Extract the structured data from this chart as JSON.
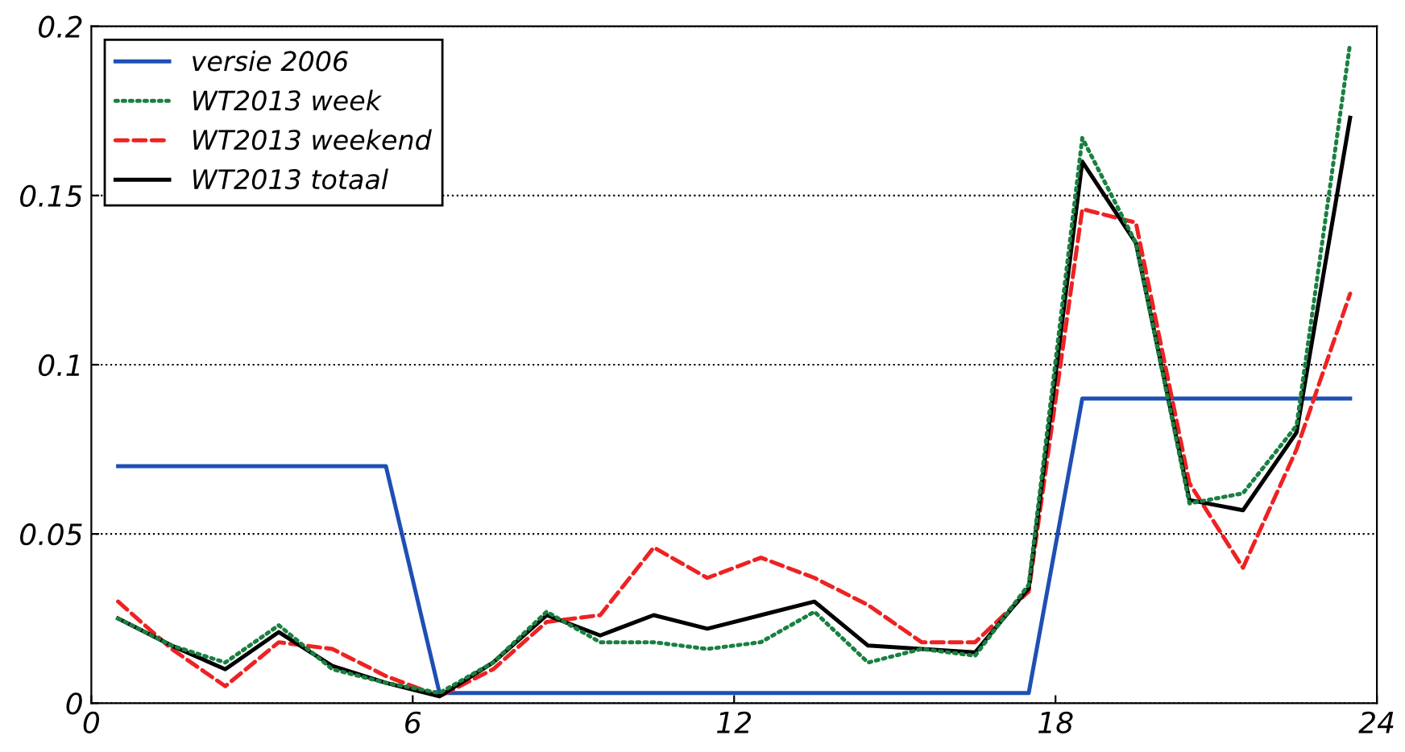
{
  "chart_data": {
    "type": "line",
    "x": [
      0.5,
      1.5,
      2.5,
      3.5,
      4.5,
      5.5,
      6.5,
      7.5,
      8.5,
      9.5,
      10.5,
      11.5,
      12.5,
      13.5,
      14.5,
      15.5,
      16.5,
      17.5,
      18.5,
      19.5,
      20.5,
      21.5,
      22.5,
      23.5
    ],
    "series": [
      {
        "name": "versie 2006",
        "color": "#1f4fb4",
        "line_style": "solid",
        "values": [
          0.07,
          0.07,
          0.07,
          0.07,
          0.07,
          0.07,
          0.003,
          0.003,
          0.003,
          0.003,
          0.003,
          0.003,
          0.003,
          0.003,
          0.003,
          0.003,
          0.003,
          0.003,
          0.09,
          0.09,
          0.09,
          0.09,
          0.09,
          0.09
        ]
      },
      {
        "name": "WT2013 week",
        "color": "#1a8040",
        "line_style": "dotted",
        "values": [
          0.025,
          0.017,
          0.012,
          0.023,
          0.01,
          0.006,
          0.003,
          0.012,
          0.027,
          0.018,
          0.018,
          0.016,
          0.018,
          0.027,
          0.012,
          0.016,
          0.014,
          0.035,
          0.167,
          0.136,
          0.059,
          0.062,
          0.082,
          0.195
        ]
      },
      {
        "name": "WT2013 weekend",
        "color": "#ee2222",
        "line_style": "dashed",
        "values": [
          0.03,
          0.016,
          0.005,
          0.018,
          0.016,
          0.008,
          0.002,
          0.01,
          0.024,
          0.026,
          0.046,
          0.037,
          0.043,
          0.037,
          0.029,
          0.018,
          0.018,
          0.033,
          0.146,
          0.142,
          0.065,
          0.04,
          0.075,
          0.121
        ]
      },
      {
        "name": "WT2013 totaal",
        "color": "#000000",
        "line_style": "solid",
        "values": [
          0.025,
          0.017,
          0.01,
          0.021,
          0.011,
          0.006,
          0.002,
          0.012,
          0.026,
          0.02,
          0.026,
          0.022,
          0.026,
          0.03,
          0.017,
          0.016,
          0.015,
          0.034,
          0.16,
          0.136,
          0.06,
          0.057,
          0.08,
          0.173
        ]
      }
    ],
    "xlim": [
      0,
      24
    ],
    "xticks": [
      0,
      6,
      12,
      18,
      24
    ],
    "ylim": [
      0,
      0.2
    ],
    "yticks": [
      0,
      0.05,
      0.1,
      0.15,
      0.2
    ],
    "grid": "y",
    "legend": "top left"
  }
}
